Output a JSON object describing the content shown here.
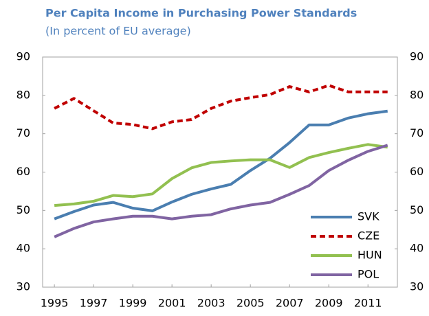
{
  "chart_data": {
    "type": "line",
    "title": "Per Capita Income in Purchasing Power Standards",
    "subtitle": "(In percent of EU average)",
    "x": [
      1995,
      1996,
      1997,
      1998,
      1999,
      2000,
      2001,
      2002,
      2003,
      2004,
      2005,
      2006,
      2007,
      2008,
      2009,
      2010,
      2011,
      2012
    ],
    "xlim": [
      1994.4,
      2012.5
    ],
    "xticks": [
      1995,
      1997,
      1999,
      2001,
      2003,
      2005,
      2007,
      2009,
      2011
    ],
    "ylim": [
      30,
      90
    ],
    "yticks": [
      30,
      40,
      50,
      60,
      70,
      80,
      90
    ],
    "y2lim": [
      30,
      90
    ],
    "y2ticks": [
      30,
      40,
      50,
      60,
      70,
      80,
      90
    ],
    "grid": false,
    "legend": "lower right",
    "series": [
      {
        "name": "SVK",
        "color": "#4a7eb0",
        "linestyle": "solid",
        "values": [
          47.8,
          49.7,
          51.4,
          52.1,
          50.6,
          49.9,
          52.2,
          54.2,
          55.6,
          56.8,
          60.4,
          63.6,
          67.7,
          72.3,
          72.3,
          74.1,
          75.2,
          75.9
        ]
      },
      {
        "name": "CZE",
        "color": "#c00000",
        "linestyle": "dashed",
        "values": [
          76.6,
          79.2,
          76.0,
          72.8,
          72.4,
          71.3,
          73.1,
          73.7,
          76.6,
          78.5,
          79.4,
          80.2,
          82.3,
          80.9,
          82.6,
          80.9,
          80.9,
          80.9
        ]
      },
      {
        "name": "HUN",
        "color": "#92c050",
        "linestyle": "solid",
        "values": [
          51.3,
          51.7,
          52.4,
          53.9,
          53.6,
          54.3,
          58.3,
          61.1,
          62.5,
          62.9,
          63.2,
          63.2,
          61.2,
          63.8,
          65.1,
          66.2,
          67.2,
          66.5
        ]
      },
      {
        "name": "POL",
        "color": "#8064a2",
        "linestyle": "solid",
        "values": [
          43.1,
          45.3,
          47.0,
          47.8,
          48.5,
          48.5,
          47.8,
          48.5,
          48.9,
          50.4,
          51.4,
          52.1,
          54.2,
          56.5,
          60.4,
          63.1,
          65.4,
          67.0
        ]
      }
    ]
  }
}
